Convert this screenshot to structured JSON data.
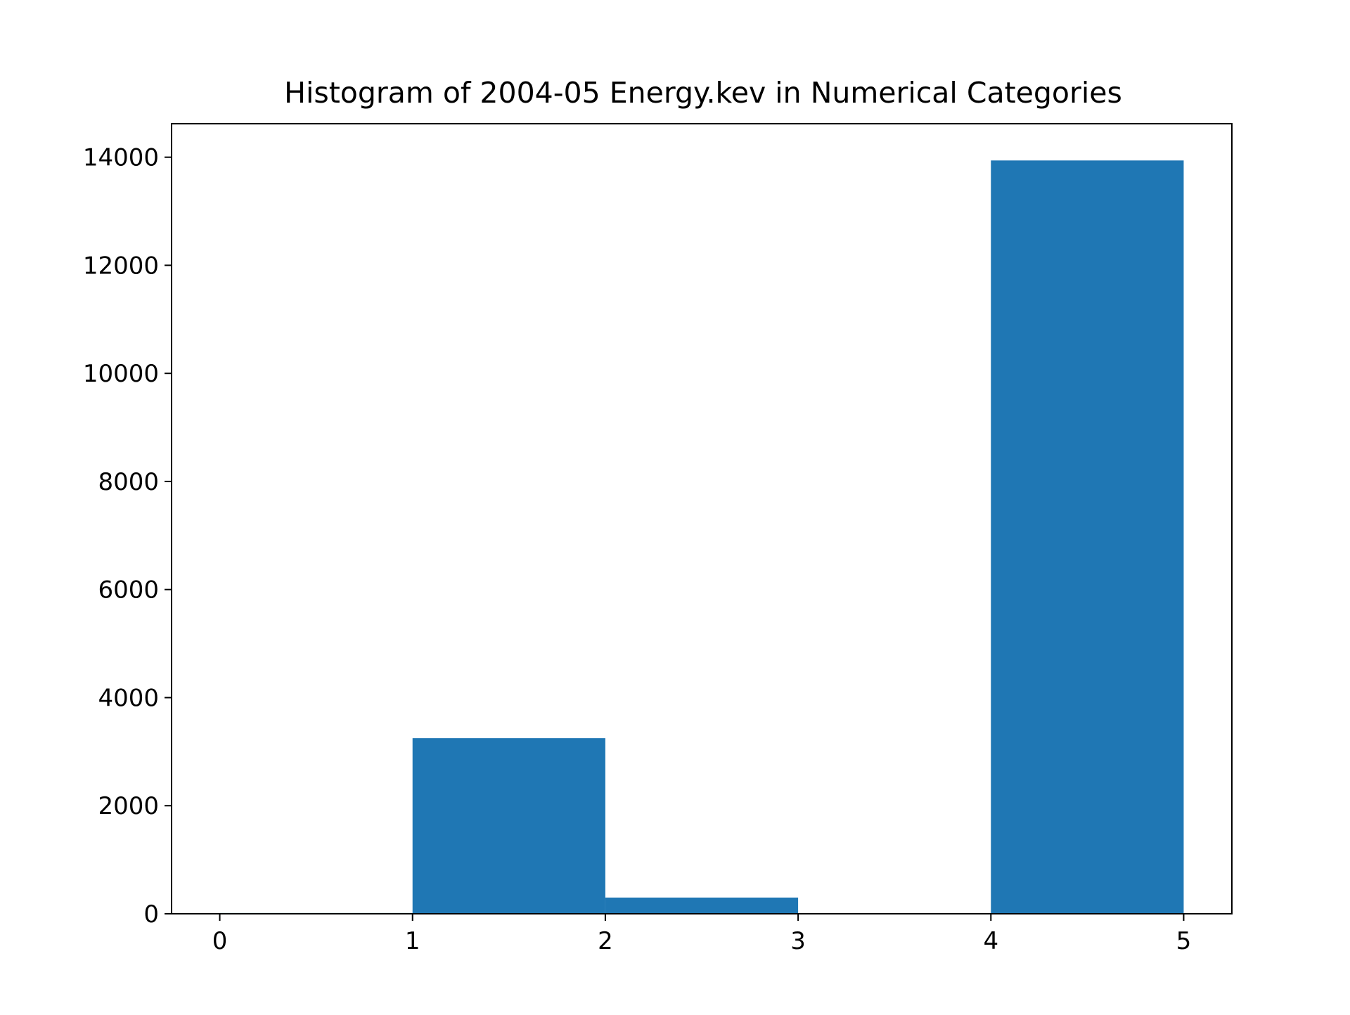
{
  "chart_data": {
    "type": "bar",
    "histogram": true,
    "title": "Histogram of 2004-05 Energy.kev in Numerical Categories",
    "xlabel": "",
    "ylabel": "",
    "bins": [
      {
        "start": 0,
        "end": 1,
        "count": 15
      },
      {
        "start": 1,
        "end": 2,
        "count": 3250
      },
      {
        "start": 2,
        "end": 3,
        "count": 300
      },
      {
        "start": 3,
        "end": 4,
        "count": 0
      },
      {
        "start": 4,
        "end": 5,
        "count": 13940
      }
    ],
    "xlim": [
      -0.25,
      5.25
    ],
    "ylim": [
      0,
      14620
    ],
    "x_ticks": [
      0,
      1,
      2,
      3,
      4,
      5
    ],
    "y_ticks": [
      0,
      2000,
      4000,
      6000,
      8000,
      10000,
      12000,
      14000
    ],
    "x_tick_labels": [
      "0",
      "1",
      "2",
      "3",
      "4",
      "5"
    ],
    "y_tick_labels": [
      "0",
      "2000",
      "4000",
      "6000",
      "8000",
      "10000",
      "12000",
      "14000"
    ],
    "grid": false,
    "legend": "none",
    "bar_color": "#1f77b4"
  }
}
